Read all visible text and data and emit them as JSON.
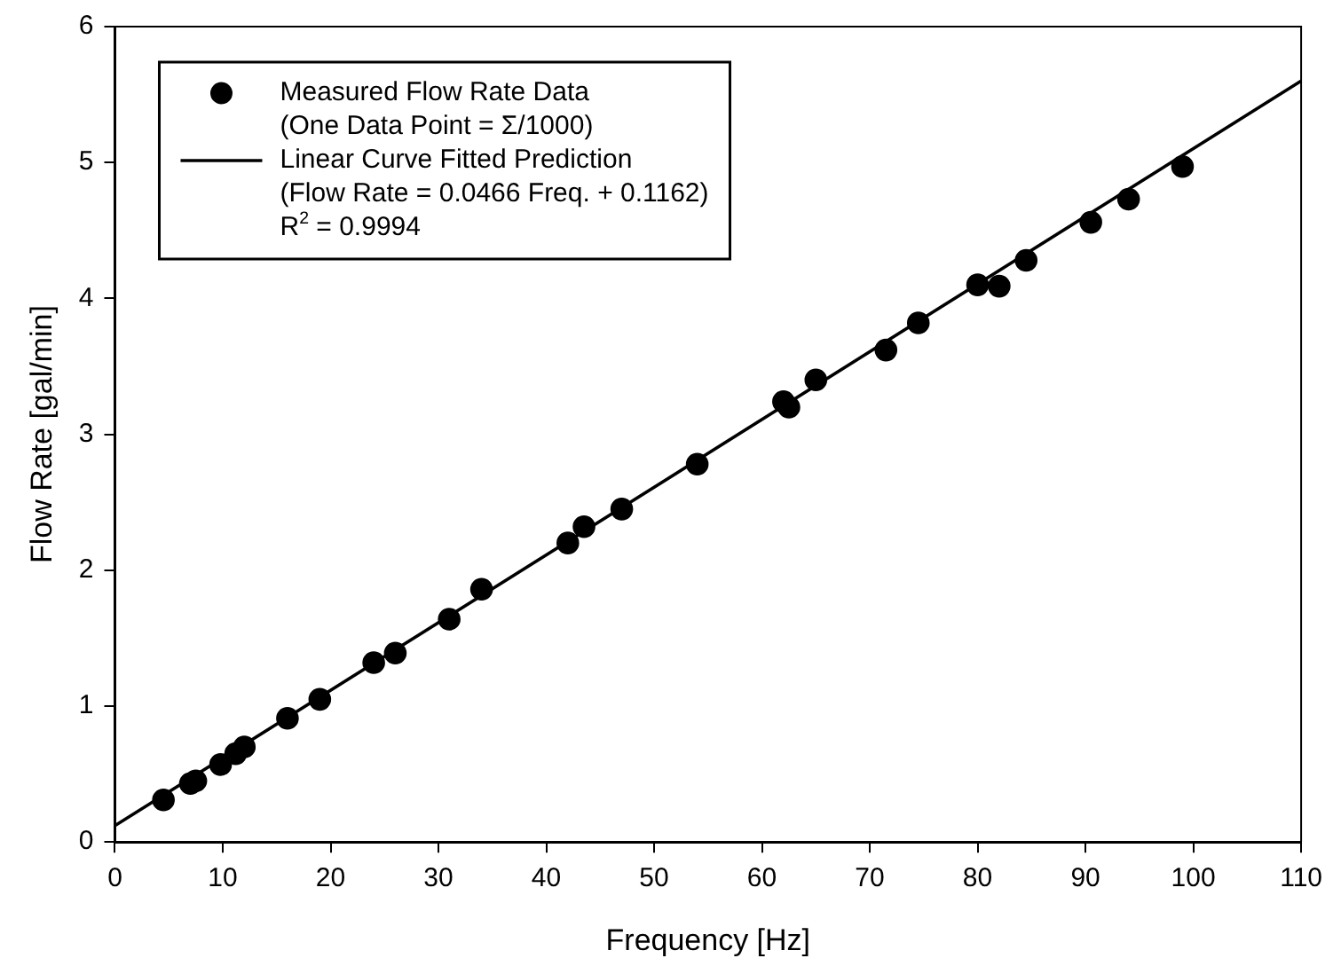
{
  "chart_data": {
    "type": "scatter",
    "xlabel": "Frequency [Hz]",
    "ylabel": "Flow Rate [gal/min]",
    "xlim": [
      0,
      110
    ],
    "xticks": [
      0,
      10,
      20,
      30,
      40,
      50,
      60,
      70,
      80,
      90,
      100,
      110
    ],
    "ylim": [
      0,
      6
    ],
    "yticks": [
      0,
      1,
      2,
      3,
      4,
      5,
      6
    ],
    "grid": false,
    "legend": "top left",
    "marker": "circle",
    "series": [
      {
        "name": "Measured Flow Rate Data\n(One Data Point = Σ/1000)",
        "type": "scatter",
        "color": "#000000",
        "x": [
          4.5,
          7,
          7.5,
          9.8,
          11.2,
          12,
          16,
          19,
          24,
          26,
          31,
          34,
          42,
          43.5,
          47,
          54,
          62,
          62.5,
          65,
          71.5,
          74.5,
          80,
          82,
          84.5,
          90.5,
          94,
          99
        ],
        "values": [
          0.31,
          0.43,
          0.45,
          0.57,
          0.65,
          0.7,
          0.91,
          1.05,
          1.32,
          1.39,
          1.64,
          1.86,
          2.2,
          2.32,
          2.45,
          2.78,
          3.24,
          3.2,
          3.4,
          3.62,
          3.82,
          4.1,
          4.09,
          4.28,
          4.56,
          4.73,
          4.97
        ]
      },
      {
        "name": "Linear Curve Fitted Prediction\n(Flow Rate = 0.0466 Freq. + 0.1162)",
        "type": "line",
        "color": "#000000",
        "line_style": "solid",
        "marker": "none",
        "x": [
          0,
          110
        ],
        "values": [
          0.12,
          5.6
        ]
      }
    ],
    "annotations": [
      "R$^{2}$ = 0.9994"
    ]
  }
}
